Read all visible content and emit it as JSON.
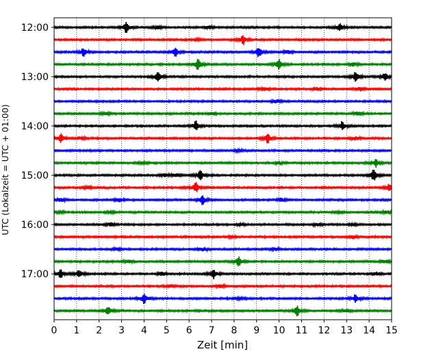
{
  "chart_data": {
    "type": "line",
    "title": "",
    "xlabel": "Zeit  [min]",
    "ylabel": "UTC (Lokalzeit = UTC + 01:00)",
    "xlim": [
      0,
      15
    ],
    "x_ticks": [
      0,
      1,
      2,
      3,
      4,
      5,
      6,
      7,
      8,
      9,
      10,
      11,
      12,
      13,
      14,
      15
    ],
    "x_grid": "dotted-vertical",
    "row_interval_minutes": 15,
    "row_start": "12:00",
    "row_end": "17:45",
    "y_tick_labels": [
      "12:00",
      "13:00",
      "14:00",
      "15:00",
      "16:00",
      "17:00"
    ],
    "series_color_cycle": [
      "#000000",
      "#ff0000",
      "#0000ff",
      "#008000"
    ],
    "rows": [
      {
        "start": "12:00",
        "color": "#000000",
        "events": [
          [
            3.2,
            0.9
          ],
          [
            4.6,
            0.5
          ],
          [
            6.9,
            0.6
          ],
          [
            12.7,
            0.7
          ]
        ]
      },
      {
        "start": "12:15",
        "color": "#ff0000",
        "events": [
          [
            6.4,
            0.35
          ],
          [
            8.4,
            0.8
          ]
        ]
      },
      {
        "start": "12:30",
        "color": "#0000ff",
        "events": [
          [
            1.3,
            0.7
          ],
          [
            5.4,
            0.8
          ],
          [
            9.1,
            0.9
          ],
          [
            10.4,
            0.6
          ]
        ]
      },
      {
        "start": "12:45",
        "color": "#008000",
        "events": [
          [
            6.4,
            1.0
          ],
          [
            10.0,
            1.0
          ],
          [
            13.3,
            0.6
          ]
        ]
      },
      {
        "start": "13:00",
        "color": "#000000",
        "events": [
          [
            4.6,
            0.9
          ],
          [
            13.4,
            0.9
          ],
          [
            14.7,
            0.7
          ]
        ]
      },
      {
        "start": "13:15",
        "color": "#ff0000",
        "events": [
          [
            9.4,
            0.6
          ],
          [
            11.7,
            0.5
          ],
          [
            13.6,
            0.6
          ]
        ]
      },
      {
        "start": "13:30",
        "color": "#0000ff",
        "events": [
          [
            9.9,
            0.6
          ]
        ]
      },
      {
        "start": "13:45",
        "color": "#008000",
        "events": [
          [
            2.3,
            0.4
          ],
          [
            7.0,
            0.5
          ],
          [
            13.5,
            0.6
          ]
        ]
      },
      {
        "start": "14:00",
        "color": "#000000",
        "events": [
          [
            6.3,
            0.8
          ],
          [
            12.8,
            0.7
          ]
        ]
      },
      {
        "start": "14:15",
        "color": "#ff0000",
        "events": [
          [
            0.3,
            0.8
          ],
          [
            1.2,
            0.5
          ],
          [
            9.5,
            0.9
          ],
          [
            13.4,
            0.6
          ]
        ]
      },
      {
        "start": "14:30",
        "color": "#0000ff",
        "events": [
          [
            8.2,
            0.4
          ]
        ]
      },
      {
        "start": "14:45",
        "color": "#008000",
        "events": [
          [
            3.9,
            0.4
          ],
          [
            10.0,
            0.5
          ],
          [
            14.3,
            0.7
          ]
        ]
      },
      {
        "start": "15:00",
        "color": "#000000",
        "events": [
          [
            4.9,
            0.6
          ],
          [
            5.4,
            0.6
          ],
          [
            6.5,
            1.0
          ],
          [
            14.2,
            1.0
          ]
        ]
      },
      {
        "start": "15:15",
        "color": "#ff0000",
        "events": [
          [
            1.5,
            0.5
          ],
          [
            6.3,
            0.8
          ],
          [
            14.9,
            0.7
          ]
        ]
      },
      {
        "start": "15:30",
        "color": "#0000ff",
        "events": [
          [
            0.3,
            0.6
          ],
          [
            2.9,
            0.6
          ],
          [
            6.6,
            0.8
          ],
          [
            10.1,
            0.6
          ]
        ]
      },
      {
        "start": "15:45",
        "color": "#008000",
        "events": [
          [
            0.3,
            0.5
          ],
          [
            2.5,
            0.4
          ],
          [
            12.7,
            0.4
          ],
          [
            14.8,
            0.6
          ]
        ]
      },
      {
        "start": "16:00",
        "color": "#000000",
        "events": [
          [
            2.5,
            0.6
          ],
          [
            8.3,
            0.5
          ],
          [
            11.7,
            0.5
          ],
          [
            13.3,
            0.5
          ]
        ]
      },
      {
        "start": "16:15",
        "color": "#ff0000",
        "events": [
          [
            7.9,
            0.3
          ],
          [
            13.3,
            0.5
          ]
        ]
      },
      {
        "start": "16:30",
        "color": "#0000ff",
        "events": [
          [
            2.8,
            0.5
          ],
          [
            6.6,
            0.6
          ],
          [
            9.8,
            0.5
          ]
        ]
      },
      {
        "start": "16:45",
        "color": "#008000",
        "events": [
          [
            3.3,
            0.6
          ],
          [
            8.2,
            0.9
          ],
          [
            14.7,
            0.6
          ]
        ]
      },
      {
        "start": "17:00",
        "color": "#000000",
        "events": [
          [
            0.3,
            0.8
          ],
          [
            1.1,
            0.7
          ],
          [
            4.8,
            0.6
          ],
          [
            7.1,
            0.8
          ],
          [
            14.3,
            0.6
          ]
        ]
      },
      {
        "start": "17:15",
        "color": "#ff0000",
        "events": [
          [
            5.2,
            0.4
          ],
          [
            7.4,
            0.6
          ]
        ]
      },
      {
        "start": "17:30",
        "color": "#0000ff",
        "events": [
          [
            4.0,
            0.9
          ],
          [
            8.3,
            0.5
          ],
          [
            13.4,
            0.7
          ]
        ]
      },
      {
        "start": "17:45",
        "color": "#008000",
        "events": [
          [
            2.4,
            0.8
          ],
          [
            10.8,
            0.9
          ],
          [
            13.0,
            0.5
          ]
        ]
      }
    ]
  }
}
